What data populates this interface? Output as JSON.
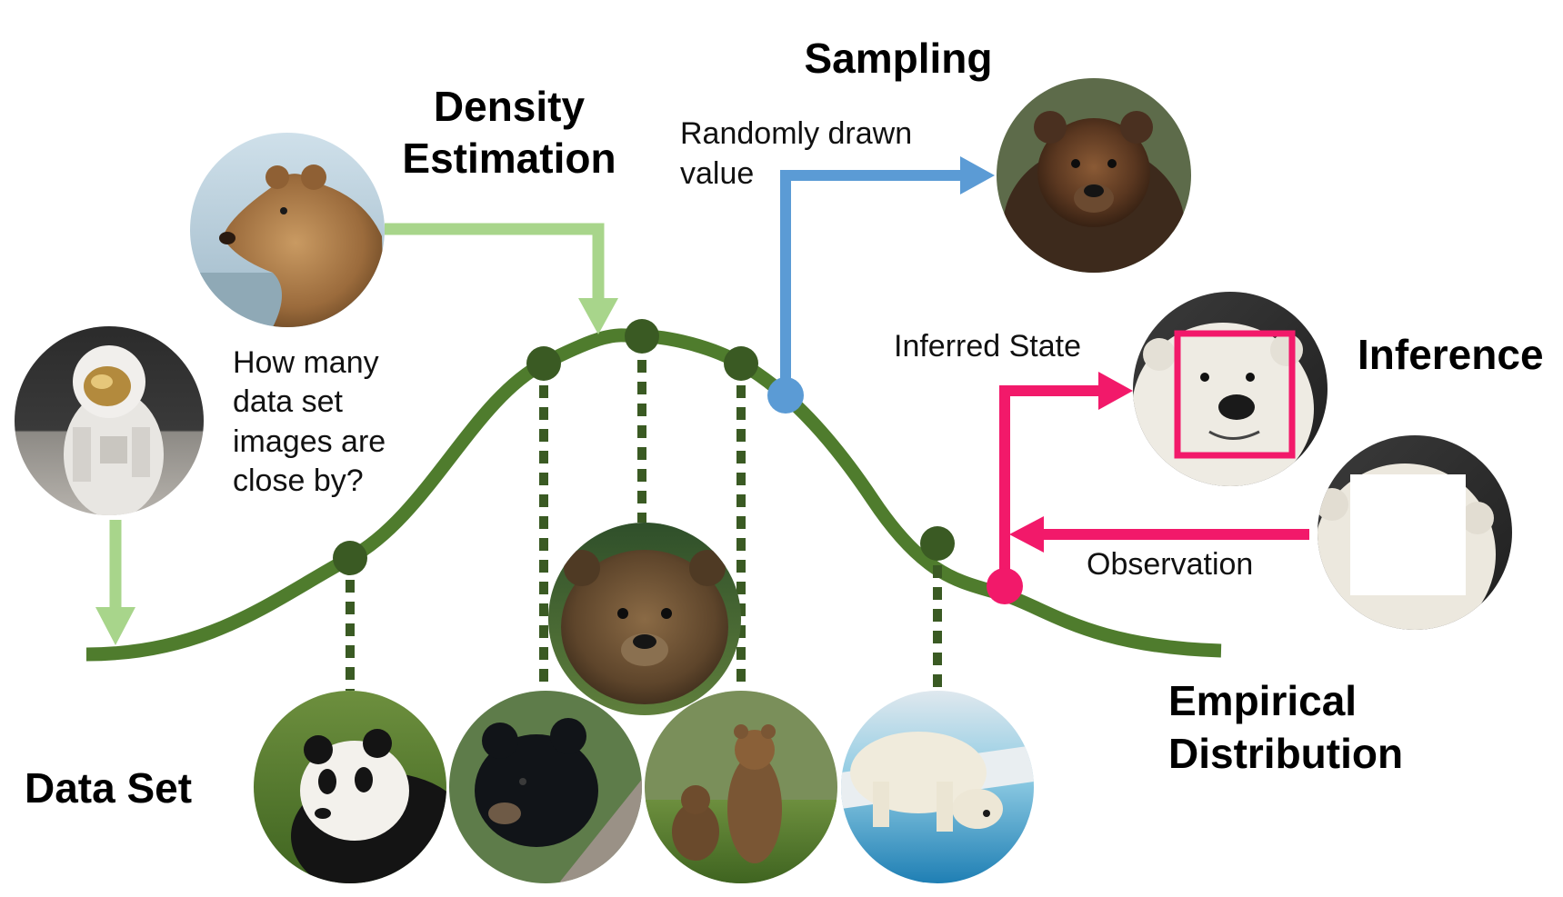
{
  "titles": {
    "density_estimation_line1": "Density",
    "density_estimation_line2": "Estimation",
    "sampling": "Sampling",
    "inference": "Inference",
    "empirical_distribution_line1": "Empirical",
    "empirical_distribution_line2": "Distribution",
    "data_set": "Data Set"
  },
  "captions": {
    "density_question": [
      "How many",
      "data set",
      "images are",
      "close by?"
    ],
    "randomly_drawn": [
      "Randomly drawn",
      "value"
    ],
    "inferred_state": "Inferred State",
    "observation": "Observation"
  },
  "images": {
    "query_astronaut": "astronaut on moon",
    "query_brown_bear_profile": "brown bear profile",
    "sampled_grizzly": "wet grizzly bear",
    "inferred_polar_bear_face": "polar bear face",
    "observation_polar_bear_masked": "polar bear with masked face",
    "dataset_center_grizzly": "grizzly bear",
    "dataset_panda": "giant panda",
    "dataset_black_bear_cub": "black bear cub",
    "dataset_standing_bears": "brown bears standing",
    "dataset_polar_bear_water": "polar bear at water"
  },
  "colors": {
    "curve": "#4f7c2d",
    "dataset_point": "#3a5a23",
    "density_arrow": "#a8d58b",
    "sampling": "#5b9bd5",
    "inference": "#f2196a"
  }
}
